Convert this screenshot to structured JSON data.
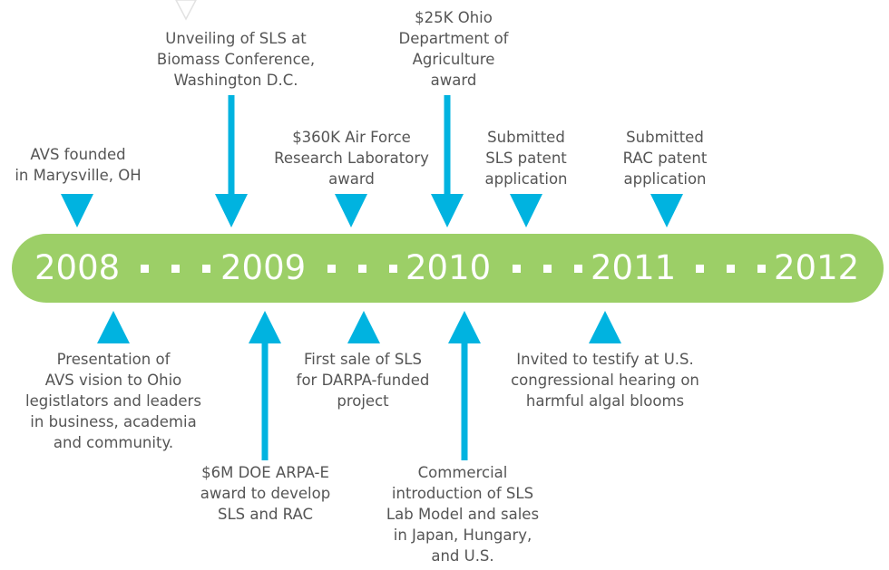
{
  "accent_color": "#00b3e0",
  "bar_color": "#9ccf67",
  "years": [
    "2008",
    "2009",
    "2010",
    "2011",
    "2012"
  ],
  "events_above": [
    {
      "lines": [
        "AVS founded",
        "in Marysville, OH"
      ],
      "arrow": "short"
    },
    {
      "lines": [
        "Unveiling of SLS at",
        "Biomass Conference,",
        "Washington D.C."
      ],
      "arrow": "long"
    },
    {
      "lines": [
        "$360K Air Force",
        "Research Laboratory",
        "award"
      ],
      "arrow": "short"
    },
    {
      "lines": [
        "$25K Ohio",
        "Department of",
        "Agriculture",
        "award"
      ],
      "arrow": "long"
    },
    {
      "lines": [
        "Submitted",
        "SLS patent",
        "application"
      ],
      "arrow": "short"
    },
    {
      "lines": [
        "Submitted",
        "RAC patent",
        "application"
      ],
      "arrow": "short"
    }
  ],
  "events_below": [
    {
      "lines": [
        "Presentation of",
        "AVS vision to Ohio",
        "legistlators and leaders",
        "in business, academia",
        "and community."
      ],
      "arrow": "short"
    },
    {
      "lines": [
        "$6M DOE ARPA-E",
        "award to develop",
        "SLS and RAC"
      ],
      "arrow": "long"
    },
    {
      "lines": [
        "First sale of SLS",
        "for DARPA-funded",
        "project"
      ],
      "arrow": "short"
    },
    {
      "lines": [
        "Commercial",
        "introduction of SLS",
        "Lab Model and sales",
        "in Japan, Hungary,",
        "and U.S."
      ],
      "arrow": "long"
    },
    {
      "lines": [
        "Invited to testify at U.S.",
        "congressional hearing on",
        "harmful algal blooms"
      ],
      "arrow": "short"
    }
  ]
}
